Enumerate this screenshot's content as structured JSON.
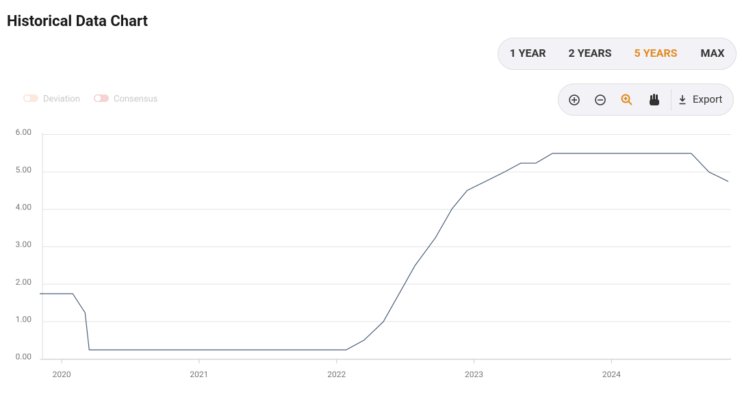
{
  "header": {
    "title": "Historical Data Chart"
  },
  "range_buttons": [
    "1 YEAR",
    "2 YEARS",
    "5 YEARS",
    "MAX"
  ],
  "selected_range": 2,
  "toolbar": {
    "export": "Export"
  },
  "legend": [
    "Deviation",
    "Consensus"
  ],
  "chart_data": {
    "type": "line",
    "x": [
      2019.84,
      2020.08,
      2020.17,
      2020.2,
      2022.07,
      2022.2,
      2022.34,
      2022.57,
      2022.72,
      2022.84,
      2022.95,
      2023.22,
      2023.34,
      2023.45,
      2023.57,
      2024.58,
      2024.71,
      2024.85
    ],
    "series": [
      {
        "color": "#4a5e7a",
        "values": [
          1.7,
          1.7,
          1.19,
          0.2,
          0.2,
          0.46,
          0.95,
          2.45,
          3.2,
          3.97,
          4.46,
          4.95,
          5.19,
          5.19,
          5.45,
          5.45,
          4.95,
          4.7
        ]
      }
    ],
    "xlim": [
      2019.84,
      2024.85
    ],
    "xticks": [
      2020,
      2021,
      2022,
      2023,
      2024
    ],
    "ylim": [
      0,
      6
    ],
    "yticks": [
      {
        "value": 0,
        "label": "0.00"
      },
      {
        "value": 1,
        "label": "1.00"
      },
      {
        "value": 2,
        "label": "2.00"
      },
      {
        "value": 3,
        "label": "3.00"
      },
      {
        "value": 4,
        "label": "4.00"
      },
      {
        "value": 5,
        "label": "5.00"
      },
      {
        "value": 6,
        "label": "6.00"
      }
    ],
    "grid": true
  }
}
